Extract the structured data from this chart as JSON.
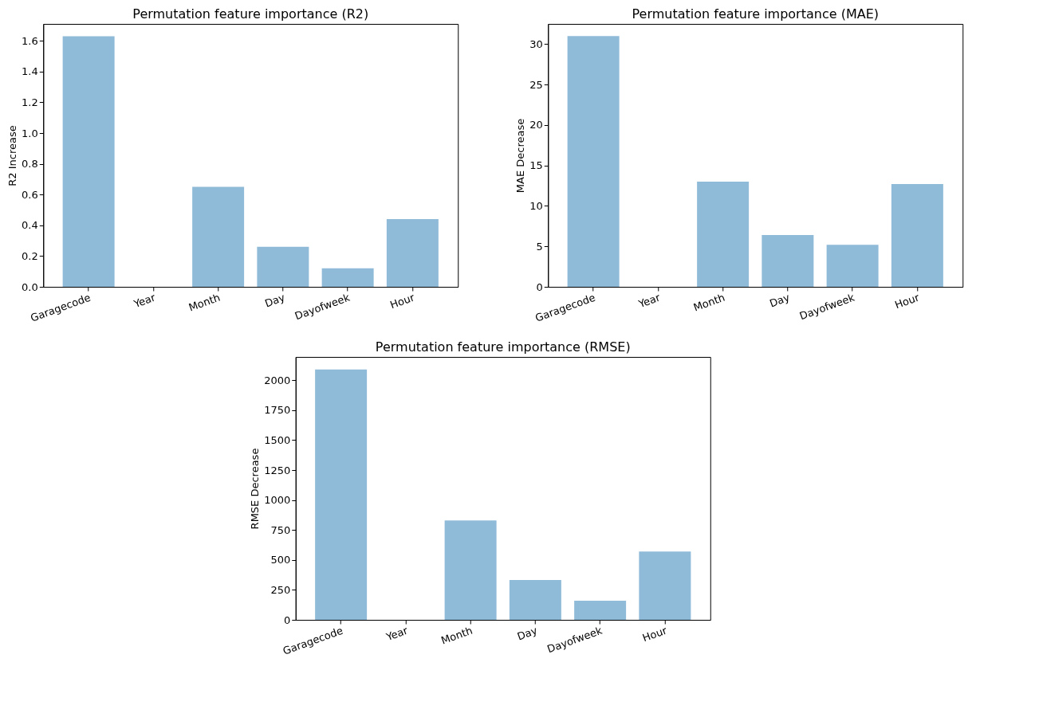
{
  "chart_data": [
    {
      "type": "bar",
      "title": "Permutation feature importance (R2)",
      "ylabel": "R2 Increase",
      "categories": [
        "Garagecode",
        "Year",
        "Month",
        "Day",
        "Dayofweek",
        "Hour"
      ],
      "values": [
        1.63,
        0,
        0.65,
        0.26,
        0.12,
        0.44
      ],
      "color": "#8fbbd9",
      "ylim": [
        0,
        1.71
      ],
      "yticks": [
        {
          "value": 0,
          "label": "0.0"
        },
        {
          "value": 0.2,
          "label": "0.2"
        },
        {
          "value": 0.4,
          "label": "0.4"
        },
        {
          "value": 0.6,
          "label": "0.6"
        },
        {
          "value": 0.8,
          "label": "0.8"
        },
        {
          "value": 1,
          "label": "1.0"
        },
        {
          "value": 1.2,
          "label": "1.2"
        },
        {
          "value": 1.4,
          "label": "1.4"
        },
        {
          "value": 1.6,
          "label": "1.6"
        }
      ],
      "grid": false
    },
    {
      "type": "bar",
      "title": "Permutation feature importance (MAE)",
      "ylabel": "MAE Decrease",
      "categories": [
        "Garagecode",
        "Year",
        "Month",
        "Day",
        "Dayofweek",
        "Hour"
      ],
      "values": [
        31.0,
        0,
        13.0,
        6.4,
        5.2,
        12.7
      ],
      "color": "#8fbbd9",
      "ylim": [
        0,
        32.5
      ],
      "yticks": [
        0,
        5,
        10,
        15,
        20,
        25,
        30
      ],
      "grid": false
    },
    {
      "type": "bar",
      "title": "Permutation feature importance (RMSE)",
      "ylabel": "RMSE Decrease",
      "categories": [
        "Garagecode",
        "Year",
        "Month",
        "Day",
        "Dayofweek",
        "Hour"
      ],
      "values": [
        2090,
        0,
        830,
        332,
        160,
        571
      ],
      "color": "#8fbbd9",
      "ylim": [
        0,
        2195
      ],
      "yticks": [
        0,
        250,
        500,
        750,
        1000,
        1250,
        1500,
        1750,
        2000
      ],
      "grid": false
    }
  ]
}
